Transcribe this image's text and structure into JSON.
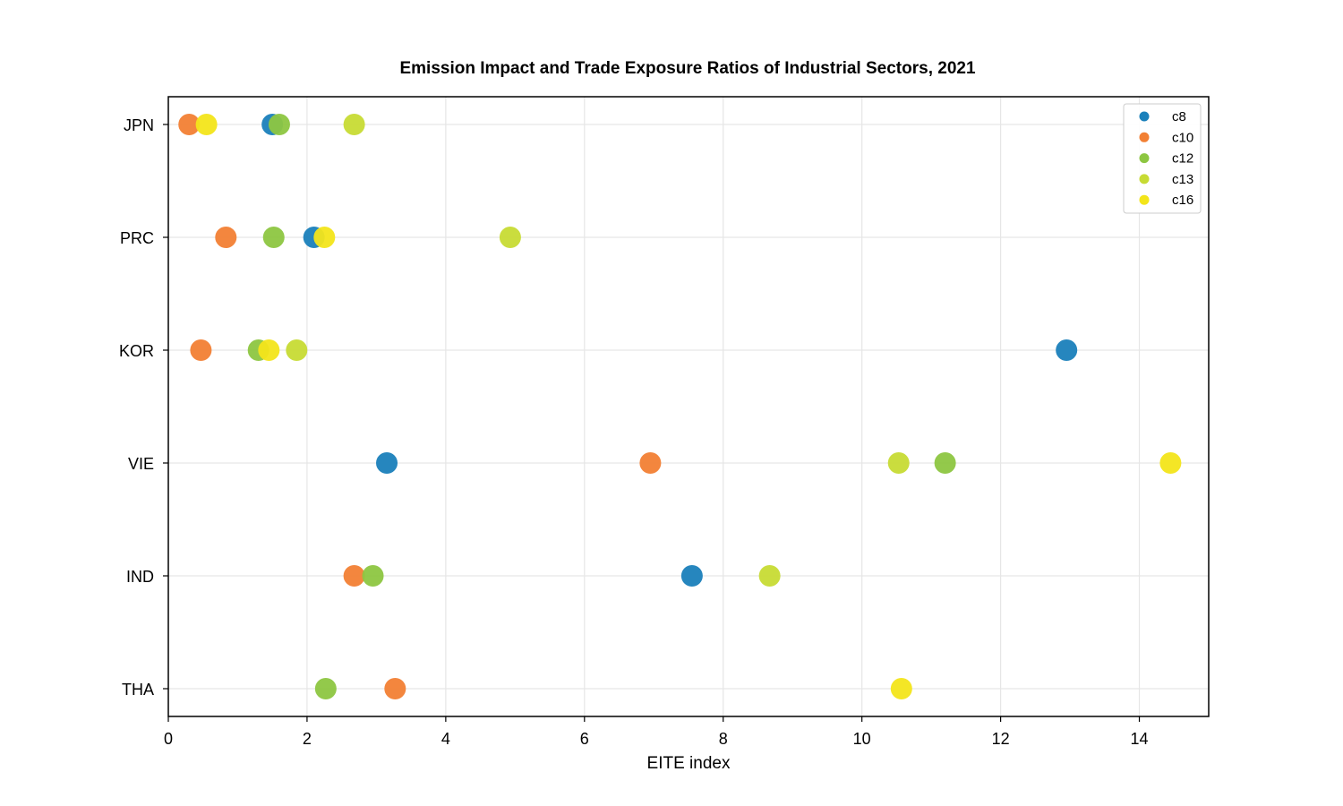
{
  "chart_data": {
    "type": "scatter",
    "title": "Emission Impact and Trade Exposure Ratios of Industrial Sectors, 2021",
    "xlabel": "EITE index",
    "ylabel": "",
    "xlim": [
      0,
      15
    ],
    "xticks": [
      0,
      2,
      4,
      6,
      8,
      10,
      12,
      14
    ],
    "categories": [
      "JPN",
      "PRC",
      "KOR",
      "VIE",
      "IND",
      "THA"
    ],
    "grid": true,
    "legend_position": "top-right",
    "series": [
      {
        "name": "c8",
        "color": "#1a80bb",
        "points": [
          [
            "JPN",
            1.5
          ],
          [
            "PRC",
            2.1
          ],
          [
            "KOR",
            12.95
          ],
          [
            "VIE",
            3.15
          ],
          [
            "IND",
            7.55
          ]
        ]
      },
      {
        "name": "c10",
        "color": "#f28034",
        "points": [
          [
            "JPN",
            0.3
          ],
          [
            "PRC",
            0.83
          ],
          [
            "KOR",
            0.47
          ],
          [
            "VIE",
            6.95
          ],
          [
            "IND",
            2.68
          ],
          [
            "THA",
            3.27
          ]
        ]
      },
      {
        "name": "c12",
        "color": "#8dc641",
        "points": [
          [
            "JPN",
            1.6
          ],
          [
            "PRC",
            1.52
          ],
          [
            "KOR",
            1.3
          ],
          [
            "VIE",
            11.2
          ],
          [
            "IND",
            2.95
          ],
          [
            "THA",
            2.27
          ]
        ]
      },
      {
        "name": "c13",
        "color": "#c7db34",
        "points": [
          [
            "JPN",
            2.68
          ],
          [
            "PRC",
            4.93
          ],
          [
            "KOR",
            1.85
          ],
          [
            "VIE",
            10.53
          ],
          [
            "IND",
            8.67
          ]
        ]
      },
      {
        "name": "c16",
        "color": "#f3e51a",
        "points": [
          [
            "JPN",
            0.55
          ],
          [
            "PRC",
            2.25
          ],
          [
            "KOR",
            1.45
          ],
          [
            "VIE",
            14.45
          ],
          [
            "THA",
            10.57
          ]
        ]
      }
    ]
  }
}
